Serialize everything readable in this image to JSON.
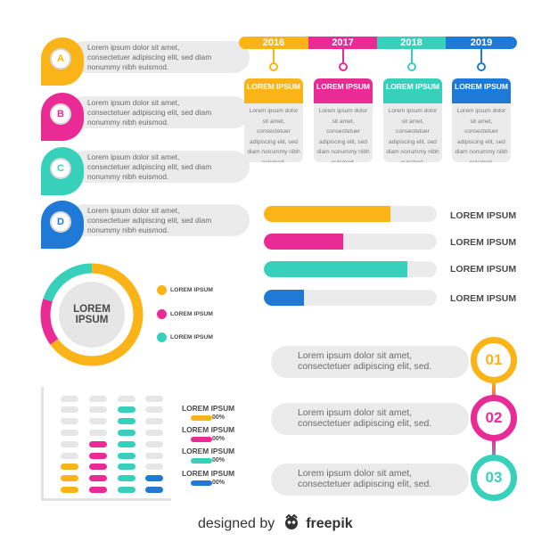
{
  "colors": {
    "yellow": "#fbb417",
    "pink": "#ea2a95",
    "teal": "#37d1bb",
    "blue": "#1e7ad6",
    "gray": "#ebebeb",
    "text": "#4a4a4a"
  },
  "letter_list": {
    "text": "Lorem ipsum dolor sit amet, consectetuer adipiscing elit, sed diam nonummy nibh euismod.",
    "items": [
      {
        "letter": "A",
        "color": "#fbb417"
      },
      {
        "letter": "B",
        "color": "#ea2a95"
      },
      {
        "letter": "C",
        "color": "#37d1bb"
      },
      {
        "letter": "D",
        "color": "#1e7ad6"
      }
    ]
  },
  "timeline": {
    "years": [
      {
        "year": "2016",
        "color": "#fbb417",
        "title": "LOREM IPSUM",
        "text": "Lorem ipsum dolor sit amet, consectetuer adipiscing elit, sed diam nonummy nibh euismod."
      },
      {
        "year": "2017",
        "color": "#ea2a95",
        "title": "LOREM IPSUM",
        "text": "Lorem ipsum dolor sit amet, consectetuer adipiscing elit, sed diam nonummy nibh euismod."
      },
      {
        "year": "2018",
        "color": "#37d1bb",
        "title": "LOREM IPSUM",
        "text": "Lorem ipsum dolor sit amet, consectetuer adipiscing elit, sed diam nonummy nibh euismod."
      },
      {
        "year": "2019",
        "color": "#1e7ad6",
        "title": "LOREM IPSUM",
        "text": "Lorem ipsum dolor sit amet, consectetuer adipiscing elit, sed diam nonummy nibh euismod."
      }
    ]
  },
  "progress_bars": [
    {
      "label": "LOREM IPSUM",
      "fill": 0.73,
      "color": "#fbb417"
    },
    {
      "label": "LOREM IPSUM",
      "fill": 0.46,
      "color": "#ea2a95"
    },
    {
      "label": "LOREM IPSUM",
      "fill": 0.83,
      "color": "#37d1bb"
    },
    {
      "label": "LOREM IPSUM",
      "fill": 0.23,
      "color": "#1e7ad6"
    }
  ],
  "donut": {
    "center_label": "LOREM IPSUM",
    "segments": [
      {
        "label": "LOREM IPSUM",
        "color": "#fbb417",
        "value": 0.65
      },
      {
        "label": "LOREM IPSUM",
        "color": "#ea2a95",
        "value": 0.15
      },
      {
        "label": "LOREM IPSUM",
        "color": "#37d1bb",
        "value": 0.2
      }
    ]
  },
  "bar_chart": {
    "legend": [
      {
        "label": "LOREM IPSUM",
        "value": "00%",
        "color": "#fbb417"
      },
      {
        "label": "LOREM IPSUM",
        "value": "00%",
        "color": "#ea2a95"
      },
      {
        "label": "LOREM IPSUM",
        "value": "00%",
        "color": "#37d1bb"
      },
      {
        "label": "LOREM IPSUM",
        "value": "00%",
        "color": "#1e7ad6"
      }
    ],
    "columns": [
      {
        "color": "#fbb417",
        "filled": 3,
        "total": 9
      },
      {
        "color": "#ea2a95",
        "filled": 5,
        "total": 9
      },
      {
        "color": "#37d1bb",
        "filled": 8,
        "total": 9
      },
      {
        "color": "#1e7ad6",
        "filled": 2,
        "total": 9
      }
    ]
  },
  "steps": [
    {
      "number": "01",
      "color": "#fbb417",
      "text": "Lorem ipsum dolor sit amet, consectetuer adipiscing elit, sed."
    },
    {
      "number": "02",
      "color": "#ea2a95",
      "text": "Lorem ipsum dolor sit amet, consectetuer adipiscing elit, sed."
    },
    {
      "number": "03",
      "color": "#37d1bb",
      "text": "Lorem ipsum dolor sit amet, consectetuer adipiscing elit, sed."
    }
  ],
  "footer": {
    "prefix": "designed by",
    "brand": "freepik"
  }
}
